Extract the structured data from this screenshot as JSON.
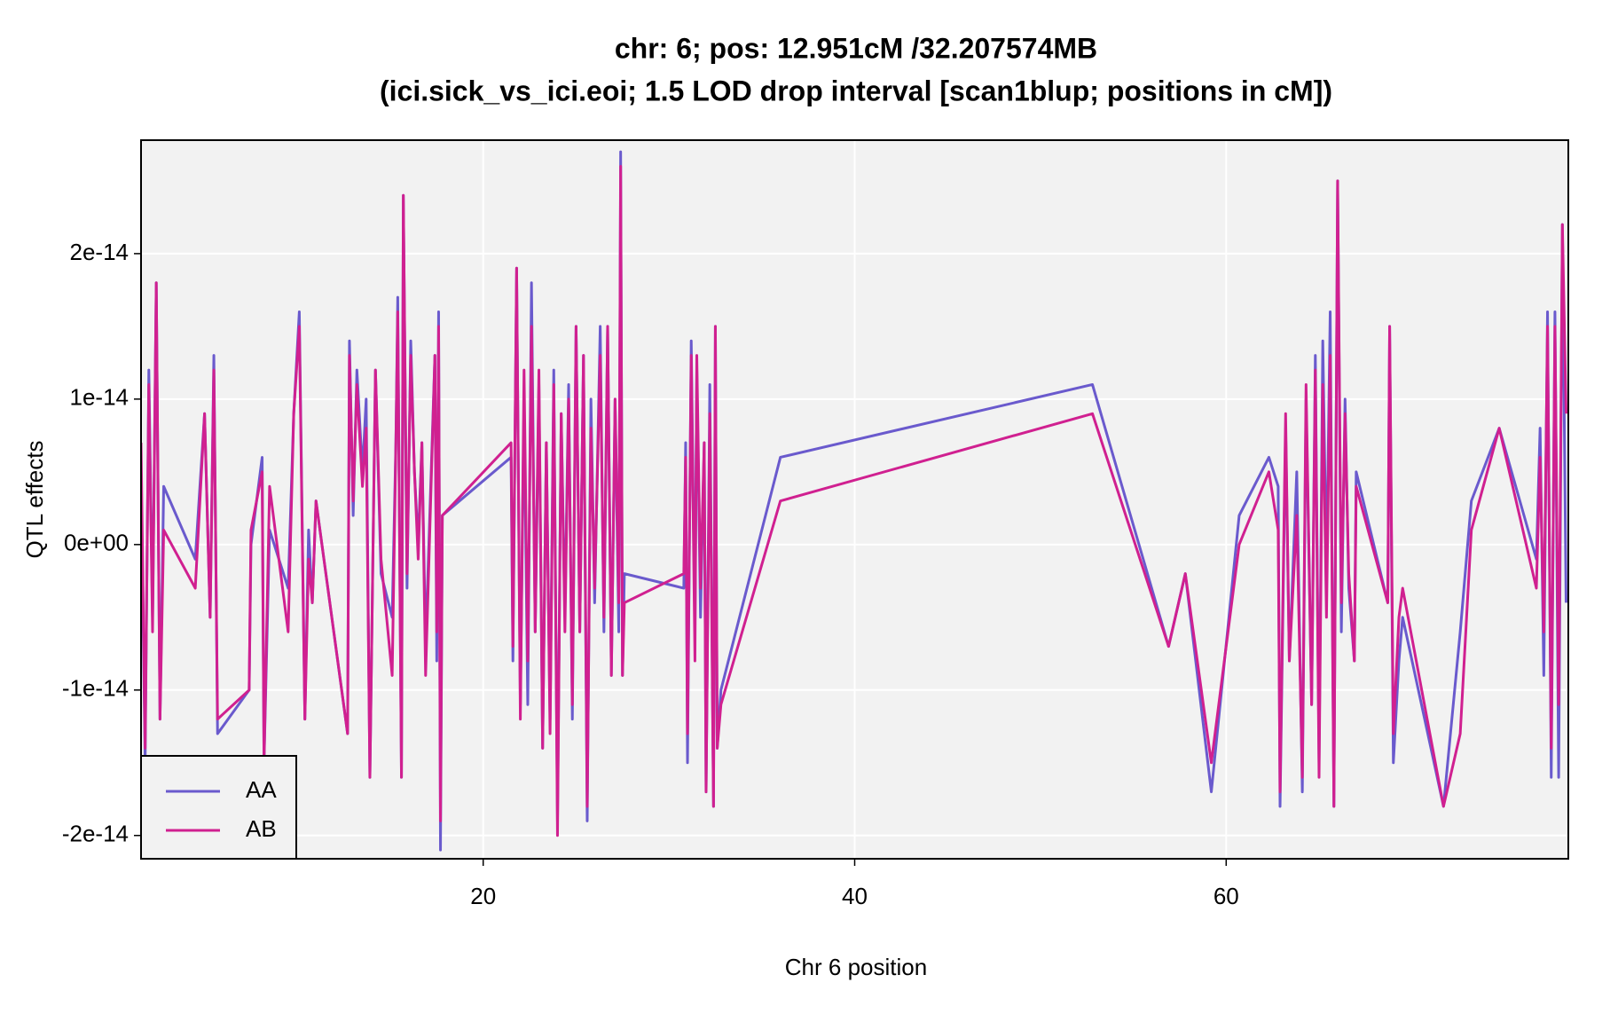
{
  "chart_data": {
    "type": "line",
    "title": "chr: 6; pos: 12.951cM /32.207574MB",
    "subtitle": "(ici.sick_vs_ici.eoi; 1.5 LOD drop interval [scan1blup; positions in cM])",
    "x_label": "Chr 6 position",
    "y_label": "QTL effects",
    "x": [
      1.58,
      1.8,
      2.0,
      2.2,
      2.4,
      2.6,
      2.8,
      4.5,
      5.0,
      5.3,
      5.5,
      5.7,
      7.4,
      7.5,
      8.1,
      8.2,
      8.5,
      9.5,
      9.8,
      10.1,
      10.4,
      10.6,
      10.8,
      11.0,
      12.7,
      12.8,
      13.0,
      13.2,
      13.5,
      13.7,
      13.9,
      14.2,
      14.5,
      15.1,
      15.3,
      15.4,
      15.6,
      15.7,
      15.9,
      16.1,
      16.3,
      16.5,
      16.7,
      16.9,
      17.4,
      17.5,
      17.6,
      17.7,
      17.8,
      21.5,
      21.6,
      21.8,
      22.0,
      22.2,
      22.4,
      22.6,
      22.8,
      23.0,
      23.2,
      23.4,
      23.6,
      23.8,
      24.0,
      24.2,
      24.4,
      24.6,
      24.8,
      25.0,
      25.2,
      25.4,
      25.6,
      25.8,
      26.0,
      26.3,
      26.5,
      26.7,
      26.9,
      27.1,
      27.3,
      27.4,
      27.5,
      27.6,
      30.8,
      30.9,
      31.0,
      31.2,
      31.4,
      31.5,
      31.7,
      31.9,
      32.0,
      32.2,
      32.4,
      32.5,
      32.6,
      32.8,
      36.0,
      52.8,
      56.9,
      57.8,
      59.2,
      60.7,
      62.3,
      62.8,
      62.9,
      63.2,
      63.4,
      63.8,
      64.1,
      64.3,
      64.6,
      64.8,
      65.0,
      65.2,
      65.4,
      65.6,
      65.8,
      66.0,
      66.2,
      66.4,
      66.6,
      66.9,
      67.0,
      68.7,
      68.8,
      69.0,
      69.3,
      69.5,
      71.7,
      72.6,
      73.2,
      74.7,
      76.7,
      76.9,
      77.1,
      77.3,
      77.5,
      77.7,
      77.9,
      78.1,
      78.3
    ],
    "series": [
      {
        "name": "AA",
        "color": "#6a5acd",
        "values": [
          5e-15,
          -1.5e-14,
          1.2e-14,
          -5e-15,
          1.8e-14,
          -1.2e-14,
          4e-15,
          -1e-15,
          9e-15,
          -5e-15,
          1.3e-14,
          -1.3e-14,
          -1e-14,
          0,
          6e-15,
          -1.5e-14,
          1e-15,
          -3e-15,
          9e-15,
          1.6e-14,
          -1.2e-14,
          1e-15,
          -4e-15,
          3e-15,
          -1.3e-14,
          1.4e-14,
          2e-15,
          1.2e-14,
          5e-15,
          1e-14,
          -1.6e-14,
          1.2e-14,
          -2e-15,
          -5e-15,
          7e-15,
          1.7e-14,
          -1.6e-14,
          2.4e-14,
          -3e-15,
          1.4e-14,
          5e-15,
          0,
          7e-15,
          -7e-15,
          1.3e-14,
          -8e-15,
          1.6e-14,
          -2.1e-14,
          2e-15,
          6e-15,
          -8e-15,
          1.9e-14,
          -1.1e-14,
          1e-14,
          -1.1e-14,
          1.8e-14,
          -6e-15,
          1.1e-14,
          -1.4e-14,
          7e-15,
          -1.2e-14,
          1.2e-14,
          -1.9e-14,
          9e-15,
          -5e-15,
          1.1e-14,
          -1.2e-14,
          1.5e-14,
          -6e-15,
          1.3e-14,
          -1.9e-14,
          1e-14,
          -4e-15,
          1.5e-14,
          -6e-15,
          1.5e-14,
          -9e-15,
          1e-14,
          -6e-15,
          2.7e-14,
          -9e-15,
          -2e-15,
          -3e-15,
          7e-15,
          -1.5e-14,
          1.4e-14,
          -6e-15,
          1.2e-14,
          -5e-15,
          7e-15,
          -1.7e-14,
          1.1e-14,
          -1.8e-14,
          1.5e-14,
          -1.4e-14,
          -1e-14,
          6e-15,
          1.1e-14,
          -7e-15,
          -2e-15,
          -1.7e-14,
          2e-15,
          6e-15,
          4e-15,
          -1.8e-14,
          8e-15,
          -8e-15,
          5e-15,
          -1.7e-14,
          1e-14,
          -1.1e-14,
          1.3e-14,
          -1.5e-14,
          1.4e-14,
          -2e-15,
          1.6e-14,
          -1.8e-14,
          2.5e-14,
          -6e-15,
          1e-14,
          -3e-15,
          -8e-15,
          5e-15,
          -4e-15,
          1.5e-14,
          -1.5e-14,
          -8e-15,
          -5e-15,
          -1.8e-14,
          -6e-15,
          3e-15,
          8e-15,
          -1e-15,
          8e-15,
          -9e-15,
          1.6e-14,
          -1.6e-14,
          1.6e-14,
          -1.6e-14,
          2.2e-14,
          -4e-15
        ]
      },
      {
        "name": "AB",
        "color": "#d02090",
        "values": [
          7e-15,
          -1.4e-14,
          1.1e-14,
          -6e-15,
          1.8e-14,
          -1.2e-14,
          1e-15,
          -3e-15,
          9e-15,
          -5e-15,
          1.2e-14,
          -1.2e-14,
          -1e-14,
          1e-15,
          5e-15,
          -1.5e-14,
          4e-15,
          -6e-15,
          9e-15,
          1.5e-14,
          -1.2e-14,
          -1e-15,
          -4e-15,
          3e-15,
          -1.3e-14,
          1.3e-14,
          3e-15,
          1.1e-14,
          4e-15,
          8e-15,
          -1.6e-14,
          1.2e-14,
          -1e-15,
          -9e-15,
          7e-15,
          1.6e-14,
          -1.6e-14,
          2.4e-14,
          -2e-15,
          1.3e-14,
          5e-15,
          -1e-15,
          7e-15,
          -9e-15,
          1.3e-14,
          -6e-15,
          1.5e-14,
          -1.9e-14,
          2e-15,
          7e-15,
          -7e-15,
          1.9e-14,
          -1.2e-14,
          1.2e-14,
          -8e-15,
          1.5e-14,
          -6e-15,
          1.2e-14,
          -1.4e-14,
          7e-15,
          -1.3e-14,
          1.1e-14,
          -2e-14,
          9e-15,
          -6e-15,
          1e-14,
          -1.1e-14,
          1.5e-14,
          -6e-15,
          1.3e-14,
          -1.8e-14,
          8e-15,
          -3e-15,
          1.3e-14,
          -5e-15,
          1.5e-14,
          -9e-15,
          1e-14,
          -4e-15,
          2.6e-14,
          -9e-15,
          -4e-15,
          -2e-15,
          6e-15,
          -1.3e-14,
          1.3e-14,
          -8e-15,
          1.3e-14,
          -3e-15,
          7e-15,
          -1.7e-14,
          9e-15,
          -1.8e-14,
          1.5e-14,
          -1.4e-14,
          -1.1e-14,
          3e-15,
          9e-15,
          -7e-15,
          -2e-15,
          -1.5e-14,
          0,
          5e-15,
          1e-15,
          -1.7e-14,
          9e-15,
          -8e-15,
          2e-15,
          -1.6e-14,
          1.1e-14,
          -1.1e-14,
          1.2e-14,
          -1.6e-14,
          1.1e-14,
          -5e-15,
          1.3e-14,
          -1.8e-14,
          2.5e-14,
          -4e-15,
          9e-15,
          -2e-15,
          -8e-15,
          4e-15,
          -4e-15,
          1.5e-14,
          -1.3e-14,
          -5e-15,
          -3e-15,
          -1.8e-14,
          -1.3e-14,
          1e-15,
          8e-15,
          -3e-15,
          6e-15,
          -6e-15,
          1.5e-14,
          -1.4e-14,
          1.5e-14,
          -1.1e-14,
          2.2e-14,
          9e-15
        ]
      }
    ],
    "xlim": [
      1.58,
      78.42
    ],
    "xticks": [
      20,
      40,
      60
    ],
    "ylim": [
      -2.16e-14,
      2.78e-14
    ],
    "yticks": [
      -2e-14,
      -1e-14,
      {
        "value": 0,
        "label": "0e+00"
      },
      1e-14,
      2e-14
    ],
    "grid": true,
    "legend": "bottom-left"
  }
}
